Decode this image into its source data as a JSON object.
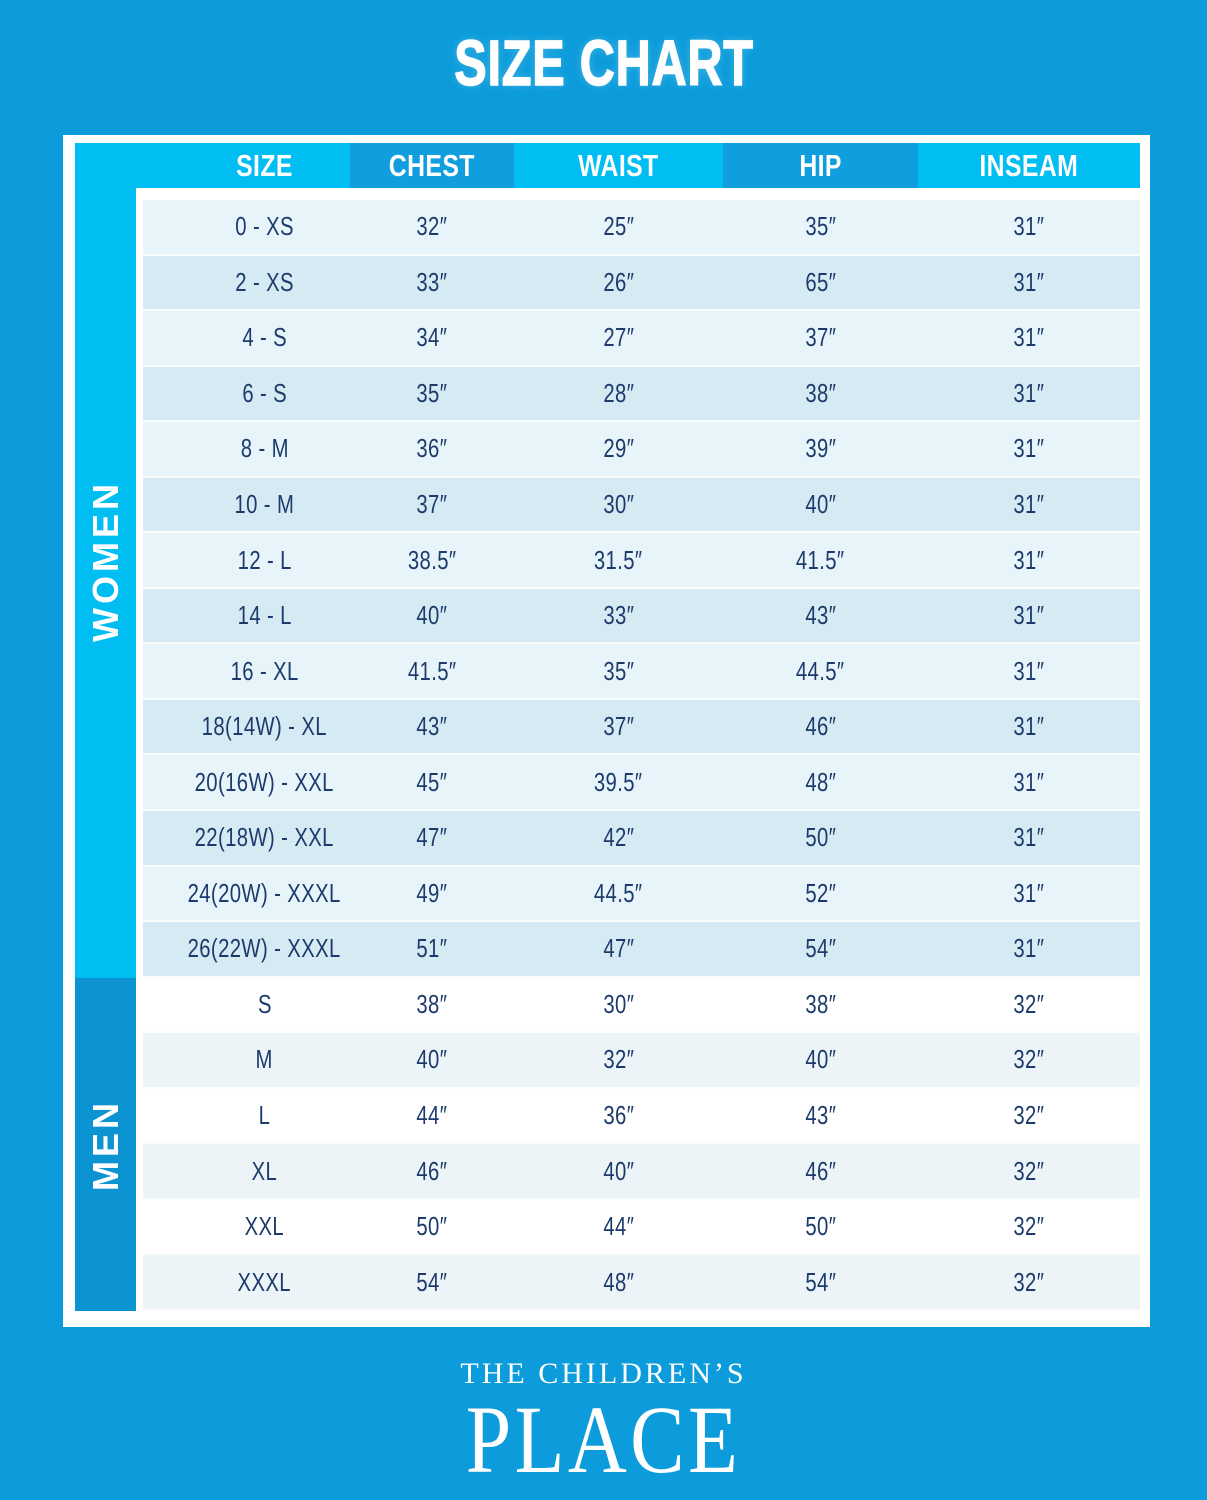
{
  "page": {
    "title": "SIZE CHART",
    "brand": {
      "line1": "THE CHILDREN’S",
      "line2": "PLACE"
    }
  },
  "table": {
    "headers": [
      "SIZE",
      "CHEST",
      "WAIST",
      "HIP",
      "INSEAM"
    ],
    "sections": [
      {
        "label": "WOMEN",
        "rows": [
          [
            "0 - XS",
            "32″",
            "25″",
            "35″",
            "31″"
          ],
          [
            "2 - XS",
            "33″",
            "26″",
            "65″",
            "31″"
          ],
          [
            "4 - S",
            "34″",
            "27″",
            "37″",
            "31″"
          ],
          [
            "6 - S",
            "35″",
            "28″",
            "38″",
            "31″"
          ],
          [
            "8 - M",
            "36″",
            "29″",
            "39″",
            "31″"
          ],
          [
            "10 - M",
            "37″",
            "30″",
            "40″",
            "31″"
          ],
          [
            "12 - L",
            "38.5″",
            "31.5″",
            "41.5″",
            "31″"
          ],
          [
            "14 - L",
            "40″",
            "33″",
            "43″",
            "31″"
          ],
          [
            "16 - XL",
            "41.5″",
            "35″",
            "44.5″",
            "31″"
          ],
          [
            "18(14W) - XL",
            "43″",
            "37″",
            "46″",
            "31″"
          ],
          [
            "20(16W) - XXL",
            "45″",
            "39.5″",
            "48″",
            "31″"
          ],
          [
            "22(18W) - XXL",
            "47″",
            "42″",
            "50″",
            "31″"
          ],
          [
            "24(20W) - XXXL",
            "49″",
            "44.5″",
            "52″",
            "31″"
          ],
          [
            "26(22W) - XXXL",
            "51″",
            "47″",
            "54″",
            "31″"
          ]
        ]
      },
      {
        "label": "MEN",
        "rows": [
          [
            "S",
            "38″",
            "30″",
            "38″",
            "32″"
          ],
          [
            "M",
            "40″",
            "32″",
            "40″",
            "32″"
          ],
          [
            "L",
            "44″",
            "36″",
            "43″",
            "32″"
          ],
          [
            "XL",
            "46″",
            "40″",
            "46″",
            "32″"
          ],
          [
            "XXL",
            "50″",
            "44″",
            "50″",
            "32″"
          ],
          [
            "XXXL",
            "54″",
            "48″",
            "54″",
            "32″"
          ]
        ]
      }
    ]
  },
  "colors": {
    "background": "#0C9CDB",
    "accent_cyan": "#00BDF2",
    "header_dark_cell": "#119EDF",
    "men_sidebar": "#0C93D2",
    "women_row_light": "#E7F4FA",
    "women_row_dark": "#D6EAF4",
    "men_row_light": "#FFFFFF",
    "men_row_dark": "#EDF4F8",
    "text_navy": "#1C3A6B",
    "text_white": "#FFFFFF"
  }
}
